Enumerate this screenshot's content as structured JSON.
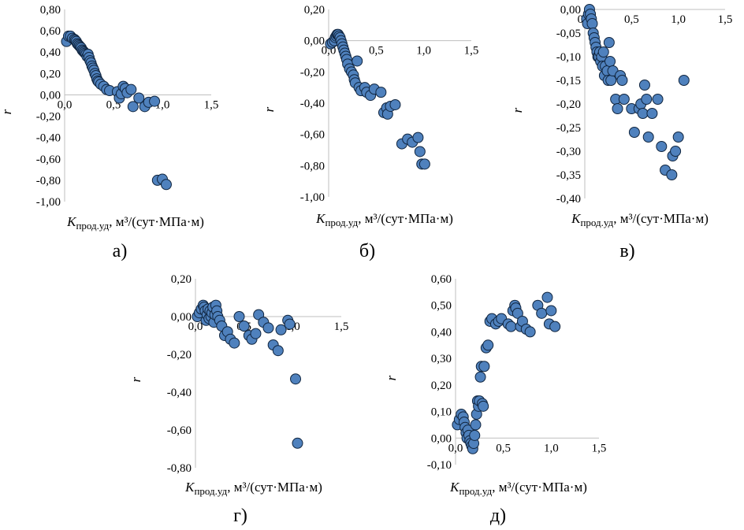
{
  "chart_data": [
    {
      "type": "scatter",
      "panel_label": "а)",
      "xlabel_main": "K",
      "xlabel_sub": "прод.уд",
      "xlabel_unit": ", м³/(сут·МПа·м)",
      "ylabel": "r",
      "xlim": [
        0,
        1.5
      ],
      "ylim": [
        -1.0,
        0.8
      ],
      "xticks": [
        "0,0",
        "0,5",
        "1,0",
        "1,5"
      ],
      "yticks": [
        "0,80",
        "0,60",
        "0,40",
        "0,20",
        "0,00",
        "-0,20",
        "-0,40",
        "-0,60",
        "-0,80",
        "-1,00"
      ],
      "x": [
        0.02,
        0.04,
        0.06,
        0.08,
        0.1,
        0.11,
        0.12,
        0.13,
        0.14,
        0.15,
        0.16,
        0.17,
        0.18,
        0.19,
        0.2,
        0.21,
        0.22,
        0.23,
        0.24,
        0.25,
        0.26,
        0.27,
        0.28,
        0.29,
        0.3,
        0.31,
        0.32,
        0.33,
        0.34,
        0.35,
        0.37,
        0.4,
        0.43,
        0.46,
        0.54,
        0.56,
        0.58,
        0.6,
        0.62,
        0.64,
        0.68,
        0.7,
        0.76,
        0.82,
        0.86,
        0.92,
        0.95,
        1.0,
        1.04
      ],
      "y": [
        0.5,
        0.55,
        0.55,
        0.53,
        0.52,
        0.51,
        0.5,
        0.48,
        0.47,
        0.46,
        0.45,
        0.44,
        0.42,
        0.41,
        0.4,
        0.39,
        0.38,
        0.36,
        0.38,
        0.35,
        0.32,
        0.3,
        0.27,
        0.25,
        0.23,
        0.2,
        0.18,
        0.15,
        0.13,
        0.12,
        0.1,
        0.08,
        0.05,
        0.04,
        0.03,
        -0.03,
        0.01,
        0.08,
        0.06,
        0.02,
        0.05,
        -0.11,
        -0.03,
        -0.11,
        -0.07,
        -0.06,
        -0.8,
        -0.79,
        -0.84
      ]
    },
    {
      "type": "scatter",
      "panel_label": "б)",
      "xlabel_main": "K",
      "xlabel_sub": "прод.уд",
      "xlabel_unit": ", м³/(сут·МПа·м)",
      "ylabel": "r",
      "xlim": [
        0,
        1.5
      ],
      "ylim": [
        -1.0,
        0.2
      ],
      "xticks": [
        "0,0",
        "0,5",
        "1,0",
        "1,5"
      ],
      "yticks": [
        "0,20",
        "0,00",
        "-0,20",
        "-0,40",
        "-0,60",
        "-0,80",
        "-1,00"
      ],
      "x": [
        0.02,
        0.04,
        0.06,
        0.07,
        0.08,
        0.09,
        0.1,
        0.11,
        0.12,
        0.13,
        0.14,
        0.15,
        0.16,
        0.17,
        0.18,
        0.19,
        0.2,
        0.22,
        0.24,
        0.26,
        0.27,
        0.28,
        0.3,
        0.32,
        0.34,
        0.38,
        0.4,
        0.44,
        0.48,
        0.55,
        0.58,
        0.61,
        0.62,
        0.65,
        0.7,
        0.77,
        0.83,
        0.88,
        0.94,
        0.96,
        0.98,
        1.01
      ],
      "y": [
        -0.02,
        -0.01,
        0.0,
        0.02,
        0.03,
        0.04,
        0.04,
        0.03,
        0.02,
        0.0,
        -0.02,
        -0.04,
        -0.06,
        -0.08,
        -0.1,
        -0.12,
        -0.15,
        -0.18,
        -0.2,
        -0.22,
        -0.25,
        -0.27,
        -0.13,
        -0.3,
        -0.32,
        -0.3,
        -0.33,
        -0.35,
        -0.31,
        -0.33,
        -0.46,
        -0.43,
        -0.47,
        -0.42,
        -0.41,
        -0.66,
        -0.63,
        -0.65,
        -0.62,
        -0.71,
        -0.79,
        -0.79
      ]
    },
    {
      "type": "scatter",
      "panel_label": "в)",
      "xlabel_main": "K",
      "xlabel_sub": "прод.уд",
      "xlabel_unit": ", м³/(сут·МПа·м)",
      "ylabel": "r",
      "xlim": [
        0,
        1.5
      ],
      "ylim": [
        -0.4,
        0.0
      ],
      "xticks": [
        "0,0",
        "0,5",
        "1,0",
        "1,5"
      ],
      "yticks": [
        "0,00",
        "-0,05",
        "-0,10",
        "-0,15",
        "-0,20",
        "-0,25",
        "-0,30",
        "-0,35",
        "-0,40"
      ],
      "x": [
        0.02,
        0.03,
        0.04,
        0.05,
        0.06,
        0.07,
        0.08,
        0.09,
        0.1,
        0.11,
        0.12,
        0.13,
        0.14,
        0.15,
        0.16,
        0.17,
        0.18,
        0.19,
        0.2,
        0.21,
        0.22,
        0.24,
        0.25,
        0.26,
        0.27,
        0.28,
        0.3,
        0.33,
        0.35,
        0.38,
        0.4,
        0.42,
        0.5,
        0.53,
        0.58,
        0.6,
        0.62,
        0.64,
        0.66,
        0.68,
        0.72,
        0.78,
        0.82,
        0.86,
        0.93,
        0.94,
        0.97,
        1.0,
        1.06
      ],
      "y": [
        -0.02,
        -0.03,
        -0.01,
        0.0,
        -0.01,
        -0.02,
        -0.03,
        -0.05,
        -0.06,
        -0.07,
        -0.08,
        -0.09,
        -0.1,
        -0.1,
        -0.09,
        -0.11,
        -0.1,
        -0.12,
        -0.09,
        -0.14,
        -0.12,
        -0.13,
        -0.15,
        -0.07,
        -0.11,
        -0.15,
        -0.13,
        -0.19,
        -0.21,
        -0.14,
        -0.15,
        -0.19,
        -0.21,
        -0.26,
        -0.21,
        -0.2,
        -0.22,
        -0.16,
        -0.19,
        -0.27,
        -0.22,
        -0.19,
        -0.29,
        -0.34,
        -0.35,
        -0.31,
        -0.3,
        -0.27,
        -0.15
      ]
    },
    {
      "type": "scatter",
      "panel_label": "г)",
      "xlabel_main": "K",
      "xlabel_sub": "прод.уд",
      "xlabel_unit": ", м³/(сут·МПа·м)",
      "ylabel": "r",
      "xlim": [
        0,
        1.5
      ],
      "ylim": [
        -0.8,
        0.2
      ],
      "xticks": [
        "0,0",
        "0,5",
        "1,0",
        "1,5"
      ],
      "yticks": [
        "0,20",
        "0,00",
        "-0,20",
        "-0,40",
        "-0,60",
        "-0,80"
      ],
      "x": [
        0.02,
        0.04,
        0.06,
        0.08,
        0.09,
        0.1,
        0.11,
        0.12,
        0.13,
        0.14,
        0.15,
        0.16,
        0.17,
        0.18,
        0.19,
        0.2,
        0.21,
        0.22,
        0.23,
        0.25,
        0.27,
        0.3,
        0.33,
        0.36,
        0.4,
        0.45,
        0.5,
        0.55,
        0.58,
        0.62,
        0.65,
        0.7,
        0.75,
        0.8,
        0.85,
        0.88,
        0.95,
        0.97,
        1.03,
        1.05
      ],
      "y": [
        0.0,
        0.02,
        0.04,
        0.06,
        0.05,
        0.03,
        -0.02,
        0.01,
        0.04,
        -0.01,
        0.03,
        0.0,
        0.02,
        0.05,
        -0.03,
        0.01,
        0.06,
        0.03,
        0.0,
        -0.02,
        -0.05,
        -0.1,
        -0.08,
        -0.12,
        -0.14,
        0.0,
        -0.05,
        -0.1,
        -0.12,
        -0.09,
        0.01,
        -0.03,
        -0.06,
        -0.15,
        -0.18,
        -0.07,
        -0.02,
        -0.04,
        -0.33,
        -0.67
      ]
    },
    {
      "type": "scatter",
      "panel_label": "д)",
      "xlabel_main": "K",
      "xlabel_sub": "прод.уд",
      "xlabel_unit": ", м³/(сут·МПа·м)",
      "ylabel": "r",
      "xlim": [
        0,
        1.5
      ],
      "ylim": [
        -0.1,
        0.6
      ],
      "xticks": [
        "0,0",
        "0,5",
        "1,0",
        "1,5"
      ],
      "yticks": [
        "0,60",
        "0,50",
        "0,40",
        "0,30",
        "0,20",
        "0,10",
        "0,00",
        "-0,10"
      ],
      "x": [
        0.02,
        0.04,
        0.06,
        0.08,
        0.09,
        0.1,
        0.11,
        0.12,
        0.13,
        0.14,
        0.15,
        0.16,
        0.17,
        0.18,
        0.19,
        0.2,
        0.21,
        0.22,
        0.23,
        0.24,
        0.25,
        0.26,
        0.27,
        0.28,
        0.29,
        0.3,
        0.32,
        0.34,
        0.36,
        0.38,
        0.42,
        0.45,
        0.48,
        0.55,
        0.58,
        0.6,
        0.62,
        0.63,
        0.65,
        0.68,
        0.7,
        0.74,
        0.78,
        0.86,
        0.9,
        0.96,
        0.98,
        1.0,
        1.04
      ],
      "y": [
        0.05,
        0.07,
        0.09,
        0.08,
        0.06,
        0.04,
        0.02,
        0.0,
        0.03,
        0.01,
        -0.01,
        -0.02,
        -0.03,
        -0.04,
        -0.02,
        0.01,
        0.05,
        0.09,
        0.14,
        0.12,
        0.14,
        0.23,
        0.27,
        0.13,
        0.12,
        0.27,
        0.34,
        0.35,
        0.44,
        0.45,
        0.43,
        0.44,
        0.45,
        0.43,
        0.42,
        0.48,
        0.5,
        0.49,
        0.47,
        0.42,
        0.44,
        0.41,
        0.4,
        0.5,
        0.47,
        0.53,
        0.43,
        0.48,
        0.42
      ]
    }
  ]
}
